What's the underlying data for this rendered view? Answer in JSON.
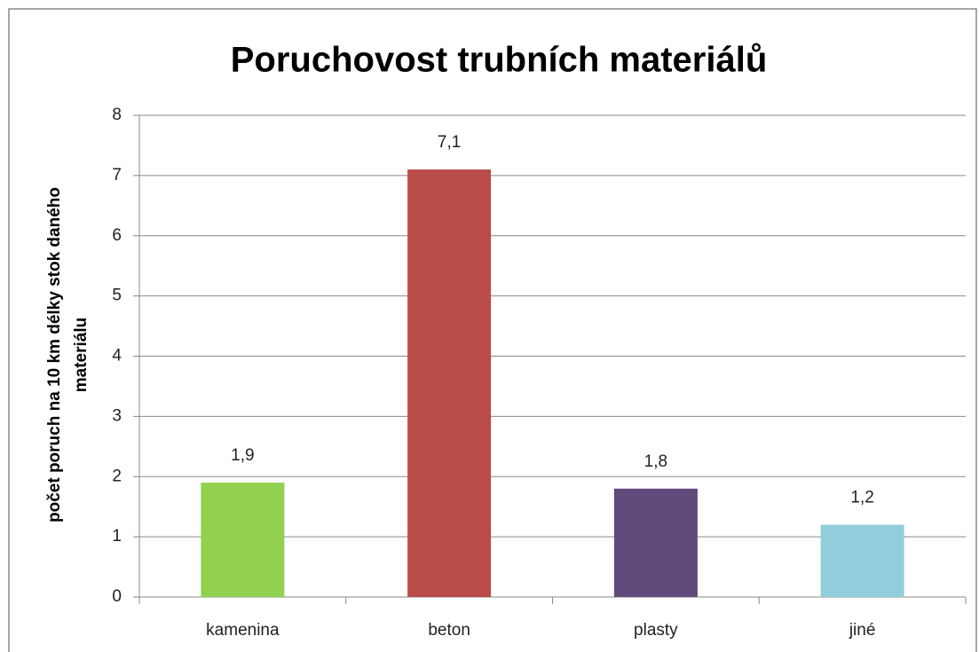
{
  "chart_data": {
    "type": "bar",
    "title": "Poruchovost trubních materiálů",
    "ylabel": [
      "počet poruch na 10 km délky stok daného",
      "materiálu"
    ],
    "categories": [
      "kamenina",
      "beton",
      "plasty",
      "jiné"
    ],
    "values": [
      1.9,
      7.1,
      1.8,
      1.2
    ],
    "value_labels": [
      "1,9",
      "7,1",
      "1,8",
      "1,2"
    ],
    "colors": [
      "#92d050",
      "#b94b49",
      "#604a7b",
      "#92cddc"
    ],
    "ylim": [
      0,
      8
    ],
    "yticks": [
      0,
      1,
      2,
      3,
      4,
      5,
      6,
      7,
      8
    ],
    "grid": true
  }
}
